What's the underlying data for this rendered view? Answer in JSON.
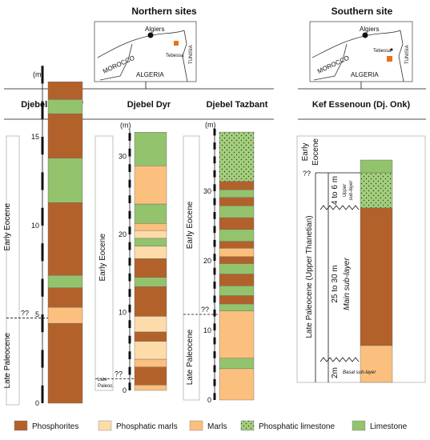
{
  "headers": {
    "north": "Northern sites",
    "south": "Southern site"
  },
  "maps": {
    "north": {
      "city": "Algiers",
      "town": "Tebessa",
      "countries": [
        "MOROCCO",
        "ALGERIA",
        "TUNISIA"
      ]
    },
    "south": {
      "city": "Algiers",
      "town": "Tebessa",
      "countries": [
        "MOROCCO",
        "ALGERIA",
        "TUNISIA"
      ]
    }
  },
  "colors": {
    "phosphorites": "#b3612b",
    "phosphatic_marls": "#fddcaa",
    "marls": "#fbc07e",
    "phosphatic_limestone": "#a3cf7b",
    "limestone": "#93c36d",
    "site_marker": "#e8711d"
  },
  "unit_label": "(m)",
  "legend": [
    {
      "key": "phosphorites",
      "label": "Phosphorites",
      "pattern": "solid"
    },
    {
      "key": "phosphatic_marls",
      "label": "Phosphatic marls",
      "pattern": "solid"
    },
    {
      "key": "marls",
      "label": "Marls",
      "pattern": "solid"
    },
    {
      "key": "phosphatic_limestone",
      "label": "Phosphatic limestone",
      "pattern": "dots"
    },
    {
      "key": "limestone",
      "label": "Limestone",
      "pattern": "solid"
    }
  ],
  "columns": [
    {
      "title": "Djebel El Kouif",
      "ticks": [
        0,
        5,
        10,
        15
      ],
      "eras": [
        {
          "label": "Early Eocene",
          "from": 4.8,
          "to": 17.5
        },
        {
          "label": "Late Paleocene",
          "from": 0,
          "to": 4.8
        }
      ],
      "boundary": {
        "at": 4.8,
        "label": "??"
      },
      "layers": [
        {
          "from": 0,
          "to": 4.5,
          "lith": "phosphorites"
        },
        {
          "from": 4.5,
          "to": 5.4,
          "lith": "marls"
        },
        {
          "from": 5.4,
          "to": 6.5,
          "lith": "phosphorites"
        },
        {
          "from": 6.5,
          "to": 7.2,
          "lith": "limestone"
        },
        {
          "from": 7.2,
          "to": 11.3,
          "lith": "phosphorites"
        },
        {
          "from": 11.3,
          "to": 13.8,
          "lith": "limestone"
        },
        {
          "from": 13.8,
          "to": 16.3,
          "lith": "phosphorites"
        },
        {
          "from": 16.3,
          "to": 17.1,
          "lith": "limestone"
        },
        {
          "from": 17.1,
          "to": 18.1,
          "lith": "phosphorites"
        }
      ]
    },
    {
      "title": "Djebel Dyr",
      "ticks": [
        0,
        10,
        20,
        30
      ],
      "eras": [
        {
          "label": "Early Eocene",
          "from": 1.5,
          "to": 33
        }
      ],
      "boundary": {
        "at": 1.5,
        "label": "??"
      },
      "era_note": [
        "Late",
        "Paleoc."
      ],
      "layers": [
        {
          "from": 0,
          "to": 0.7,
          "lith": "marls"
        },
        {
          "from": 0.7,
          "to": 3,
          "lith": "phosphorites"
        },
        {
          "from": 3,
          "to": 4,
          "lith": "marls"
        },
        {
          "from": 4,
          "to": 6.3,
          "lith": "phosphatic_marls"
        },
        {
          "from": 6.3,
          "to": 7.5,
          "lith": "phosphorites"
        },
        {
          "from": 7.5,
          "to": 9.5,
          "lith": "phosphatic_marls"
        },
        {
          "from": 9.5,
          "to": 13.3,
          "lith": "phosphorites"
        },
        {
          "from": 13.3,
          "to": 14.5,
          "lith": "limestone"
        },
        {
          "from": 14.5,
          "to": 16.9,
          "lith": "phosphorites"
        },
        {
          "from": 16.9,
          "to": 18.5,
          "lith": "phosphatic_marls"
        },
        {
          "from": 18.5,
          "to": 19.5,
          "lith": "limestone"
        },
        {
          "from": 19.5,
          "to": 20.5,
          "lith": "phosphatic_marls"
        },
        {
          "from": 20.5,
          "to": 21.4,
          "lith": "marls"
        },
        {
          "from": 21.4,
          "to": 23.9,
          "lith": "limestone"
        },
        {
          "from": 23.9,
          "to": 28.8,
          "lith": "marls"
        },
        {
          "from": 28.8,
          "to": 33.1,
          "lith": "limestone"
        }
      ]
    },
    {
      "title": "Djebel Tazbant",
      "ticks": [
        0,
        10,
        20,
        30
      ],
      "eras": [
        {
          "label": "Early Eocene",
          "from": 12.3,
          "to": 40
        },
        {
          "label": "Late Paleocene",
          "from": 0,
          "to": 12.3
        }
      ],
      "boundary": {
        "at": 12.3,
        "label": "??"
      },
      "layers": [
        {
          "from": 0,
          "to": 4.5,
          "lith": "marls"
        },
        {
          "from": 4.5,
          "to": 6,
          "lith": "limestone"
        },
        {
          "from": 6,
          "to": 12.8,
          "lith": "marls"
        },
        {
          "from": 12.8,
          "to": 13.8,
          "lith": "limestone"
        },
        {
          "from": 13.8,
          "to": 15,
          "lith": "phosphorites"
        },
        {
          "from": 15,
          "to": 16.4,
          "lith": "limestone"
        },
        {
          "from": 16.4,
          "to": 18.1,
          "lith": "phosphorites"
        },
        {
          "from": 18.1,
          "to": 19.6,
          "lith": "limestone"
        },
        {
          "from": 19.6,
          "to": 20.6,
          "lith": "phosphorites"
        },
        {
          "from": 20.6,
          "to": 21.8,
          "lith": "marls"
        },
        {
          "from": 21.8,
          "to": 22.8,
          "lith": "phosphorites"
        },
        {
          "from": 22.8,
          "to": 24.5,
          "lith": "limestone"
        },
        {
          "from": 24.5,
          "to": 26.2,
          "lith": "phosphorites"
        },
        {
          "from": 26.2,
          "to": 27.9,
          "lith": "limestone"
        },
        {
          "from": 27.9,
          "to": 29.1,
          "lith": "phosphorites"
        },
        {
          "from": 29.1,
          "to": 30.2,
          "lith": "limestone"
        },
        {
          "from": 30.2,
          "to": 31.4,
          "lith": "phosphorites"
        },
        {
          "from": 31.4,
          "to": 38.5,
          "lith": "phosphatic_limestone"
        }
      ]
    }
  ],
  "south_column": {
    "title": "Kef Essenoun (Dj. Onk)",
    "eras": {
      "top": [
        "Early",
        "Eocene"
      ],
      "main": [
        "Late Paleocene (Upper Thanetian)"
      ],
      "boundary": "??"
    },
    "sublayers": [
      {
        "thickness": "2m",
        "label": "Basal sub-layer",
        "lith": "marls"
      },
      {
        "thickness": "25 to 30 m",
        "label": "Main sub-layer",
        "lith": "phosphorites"
      },
      {
        "thickness": "4 to 6 m",
        "label": [
          "Upper",
          "sub-layer"
        ],
        "lith": "phosphatic_limestone"
      }
    ],
    "cap": "limestone"
  }
}
